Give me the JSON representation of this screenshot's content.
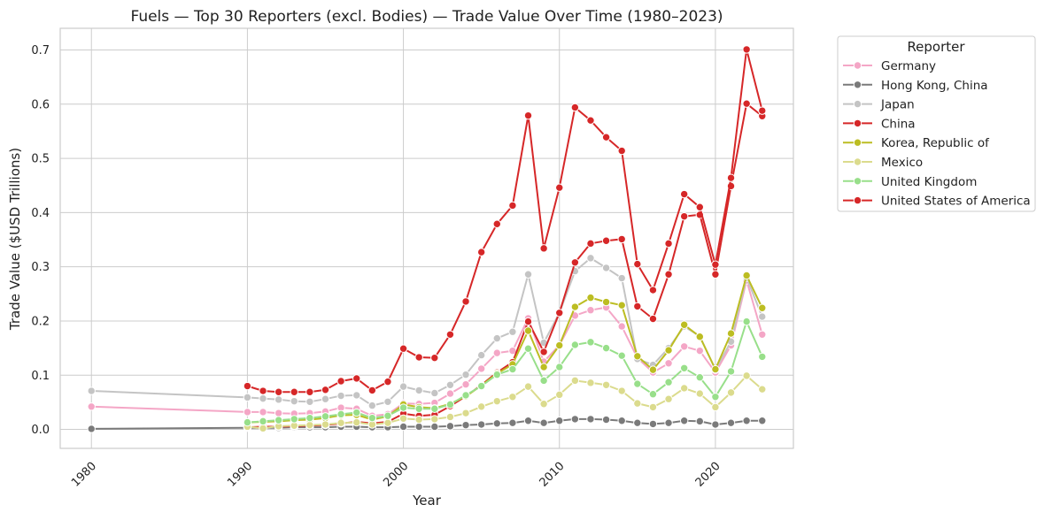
{
  "chart_data": {
    "type": "line",
    "title": "Fuels — Top 30 Reporters (excl. Bodies) — Trade Value Over Time (1980–2023)",
    "xlabel": "Year",
    "ylabel": "Trade Value ($USD Trillions)",
    "xlim": [
      1978,
      2025
    ],
    "ylim": [
      -0.035,
      0.74
    ],
    "xticks": [
      1980,
      1990,
      2000,
      2010,
      2020
    ],
    "yticks": [
      0.0,
      0.1,
      0.2,
      0.3,
      0.4,
      0.5,
      0.6,
      0.7
    ],
    "ytick_labels": [
      "0.0",
      "0.1",
      "0.2",
      "0.3",
      "0.4",
      "0.5",
      "0.6",
      "0.7"
    ],
    "grid": true,
    "legend": {
      "title": "Reporter",
      "placement": "outside-right-top"
    },
    "series": [
      {
        "name": "Germany",
        "color": "#f4a6c6",
        "x": [
          1980,
          1990,
          1991,
          1992,
          1993,
          1994,
          1995,
          1996,
          1997,
          1998,
          1999,
          2000,
          2001,
          2002,
          2003,
          2004,
          2005,
          2006,
          2007,
          2008,
          2009,
          2010,
          2011,
          2012,
          2013,
          2014,
          2015,
          2016,
          2017,
          2018,
          2019,
          2020,
          2021,
          2022,
          2023
        ],
        "y": [
          0.042,
          0.032,
          0.032,
          0.03,
          0.029,
          0.03,
          0.033,
          0.04,
          0.038,
          0.025,
          0.028,
          0.048,
          0.047,
          0.049,
          0.066,
          0.083,
          0.112,
          0.141,
          0.145,
          0.205,
          0.125,
          0.155,
          0.21,
          0.22,
          0.225,
          0.19,
          0.132,
          0.105,
          0.122,
          0.153,
          0.145,
          0.105,
          0.155,
          0.275,
          0.175
        ]
      },
      {
        "name": "Hong Kong, China",
        "color": "#7a7a7a",
        "x": [
          1980,
          1990,
          1991,
          1992,
          1993,
          1994,
          1995,
          1996,
          1997,
          1998,
          1999,
          2000,
          2001,
          2002,
          2003,
          2004,
          2005,
          2006,
          2007,
          2008,
          2009,
          2010,
          2011,
          2012,
          2013,
          2014,
          2015,
          2016,
          2017,
          2018,
          2019,
          2020,
          2021,
          2022,
          2023
        ],
        "y": [
          0.001,
          0.003,
          0.003,
          0.003,
          0.004,
          0.004,
          0.004,
          0.005,
          0.005,
          0.004,
          0.004,
          0.005,
          0.005,
          0.005,
          0.006,
          0.008,
          0.009,
          0.011,
          0.012,
          0.016,
          0.012,
          0.016,
          0.019,
          0.019,
          0.018,
          0.016,
          0.012,
          0.01,
          0.012,
          0.016,
          0.015,
          0.009,
          0.012,
          0.016,
          0.016
        ]
      },
      {
        "name": "Japan",
        "color": "#c4c4c4",
        "x": [
          1980,
          1990,
          1991,
          1992,
          1993,
          1994,
          1995,
          1996,
          1997,
          1998,
          1999,
          2000,
          2001,
          2002,
          2003,
          2004,
          2005,
          2006,
          2007,
          2008,
          2009,
          2010,
          2011,
          2012,
          2013,
          2014,
          2015,
          2016,
          2017,
          2018,
          2019,
          2020,
          2021,
          2022,
          2023
        ],
        "y": [
          0.071,
          0.059,
          0.057,
          0.055,
          0.052,
          0.051,
          0.056,
          0.062,
          0.063,
          0.044,
          0.051,
          0.079,
          0.072,
          0.067,
          0.082,
          0.101,
          0.137,
          0.168,
          0.18,
          0.286,
          0.16,
          0.215,
          0.292,
          0.316,
          0.298,
          0.279,
          0.13,
          0.119,
          0.15,
          0.19,
          0.172,
          0.11,
          0.162,
          0.28,
          0.208
        ]
      },
      {
        "name": "China",
        "color": "#d62728",
        "x": [
          1990,
          1991,
          1992,
          1993,
          1994,
          1995,
          1996,
          1997,
          1998,
          1999,
          2000,
          2001,
          2002,
          2003,
          2004,
          2005,
          2006,
          2007,
          2008,
          2009,
          2010,
          2011,
          2012,
          2013,
          2014,
          2015,
          2016,
          2017,
          2018,
          2019,
          2020,
          2021,
          2022,
          2023
        ],
        "y": [
          0.004,
          0.005,
          0.005,
          0.006,
          0.007,
          0.008,
          0.011,
          0.014,
          0.011,
          0.014,
          0.029,
          0.025,
          0.027,
          0.043,
          0.061,
          0.082,
          0.105,
          0.124,
          0.199,
          0.143,
          0.215,
          0.308,
          0.343,
          0.348,
          0.351,
          0.227,
          0.204,
          0.286,
          0.393,
          0.396,
          0.286,
          0.449,
          0.601,
          0.578
        ]
      },
      {
        "name": "Korea, Republic of",
        "color": "#bcbd22",
        "x": [
          1990,
          1991,
          1992,
          1993,
          1994,
          1995,
          1996,
          1997,
          1998,
          1999,
          2000,
          2001,
          2002,
          2003,
          2004,
          2005,
          2006,
          2007,
          2008,
          2009,
          2010,
          2011,
          2012,
          2013,
          2014,
          2015,
          2016,
          2017,
          2018,
          2019,
          2020,
          2021,
          2022,
          2023
        ],
        "y": [
          0.013,
          0.014,
          0.015,
          0.017,
          0.018,
          0.021,
          0.026,
          0.027,
          0.018,
          0.024,
          0.046,
          0.041,
          0.039,
          0.047,
          0.061,
          0.081,
          0.103,
          0.12,
          0.182,
          0.115,
          0.155,
          0.226,
          0.243,
          0.235,
          0.229,
          0.135,
          0.11,
          0.146,
          0.193,
          0.171,
          0.111,
          0.177,
          0.284,
          0.224
        ]
      },
      {
        "name": "Mexico",
        "color": "#dbdb8d",
        "x": [
          1990,
          1991,
          1992,
          1993,
          1994,
          1995,
          1996,
          1997,
          1998,
          1999,
          2000,
          2001,
          2002,
          2003,
          2004,
          2005,
          2006,
          2007,
          2008,
          2009,
          2010,
          2011,
          2012,
          2013,
          2014,
          2015,
          2016,
          2017,
          2018,
          2019,
          2020,
          2021,
          2022,
          2023
        ],
        "y": [
          0.005,
          0.002,
          0.006,
          0.007,
          0.008,
          0.009,
          0.012,
          0.013,
          0.009,
          0.012,
          0.02,
          0.018,
          0.019,
          0.023,
          0.03,
          0.042,
          0.052,
          0.06,
          0.079,
          0.047,
          0.064,
          0.09,
          0.086,
          0.082,
          0.071,
          0.048,
          0.041,
          0.056,
          0.076,
          0.066,
          0.041,
          0.068,
          0.099,
          0.074
        ]
      },
      {
        "name": "United Kingdom",
        "color": "#98df8a",
        "x": [
          1990,
          1991,
          1992,
          1993,
          1994,
          1995,
          1996,
          1997,
          1998,
          1999,
          2000,
          2001,
          2002,
          2003,
          2004,
          2005,
          2006,
          2007,
          2008,
          2009,
          2010,
          2011,
          2012,
          2013,
          2014,
          2015,
          2016,
          2017,
          2018,
          2019,
          2020,
          2021,
          2022,
          2023
        ],
        "y": [
          0.013,
          0.015,
          0.017,
          0.019,
          0.021,
          0.024,
          0.028,
          0.031,
          0.021,
          0.025,
          0.04,
          0.038,
          0.038,
          0.046,
          0.063,
          0.08,
          0.101,
          0.111,
          0.149,
          0.09,
          0.115,
          0.156,
          0.161,
          0.15,
          0.136,
          0.084,
          0.065,
          0.087,
          0.113,
          0.096,
          0.06,
          0.107,
          0.199,
          0.134
        ]
      },
      {
        "name": "United States of America",
        "color": "#d62728",
        "x": [
          1990,
          1991,
          1992,
          1993,
          1994,
          1995,
          1996,
          1997,
          1998,
          1999,
          2000,
          2001,
          2002,
          2003,
          2004,
          2005,
          2006,
          2007,
          2008,
          2009,
          2010,
          2011,
          2012,
          2013,
          2014,
          2015,
          2016,
          2017,
          2018,
          2019,
          2020,
          2021,
          2022,
          2023
        ],
        "y": [
          0.08,
          0.071,
          0.069,
          0.069,
          0.069,
          0.073,
          0.089,
          0.094,
          0.072,
          0.088,
          0.149,
          0.133,
          0.132,
          0.175,
          0.236,
          0.327,
          0.379,
          0.413,
          0.579,
          0.334,
          0.446,
          0.594,
          0.57,
          0.539,
          0.514,
          0.305,
          0.257,
          0.343,
          0.434,
          0.41,
          0.304,
          0.464,
          0.701,
          0.588
        ]
      }
    ]
  }
}
